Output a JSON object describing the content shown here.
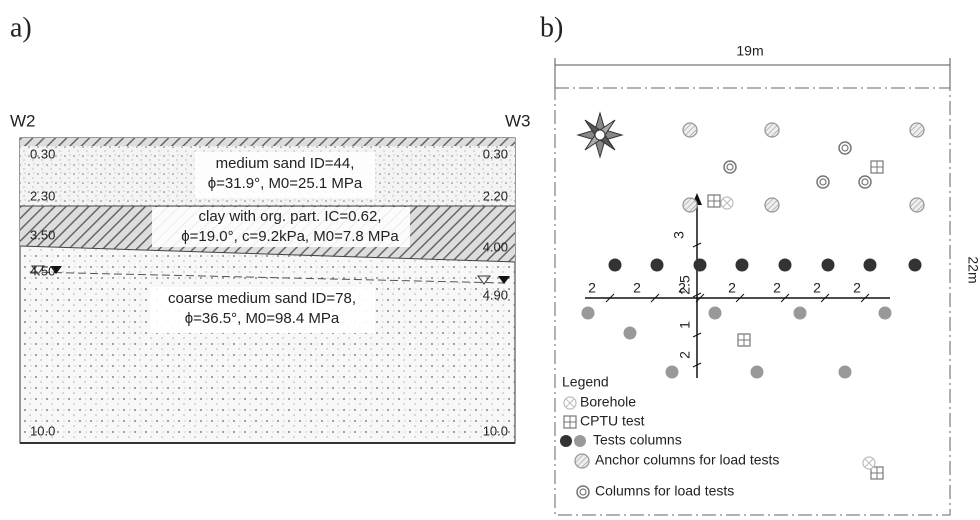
{
  "panel_a": {
    "label": "a)",
    "left_well": "W2",
    "right_well": "W3",
    "left_depths": [
      "0.30",
      "2.30",
      "3.50",
      "4.50",
      "10.0"
    ],
    "right_depths": [
      "0.30",
      "2.20",
      "4.00",
      "4.90",
      "10.0"
    ],
    "layers": [
      {
        "lines": [
          "medium sand ID=44,",
          "ϕ=31.9°, M0=25.1 MPa"
        ]
      },
      {
        "lines": [
          "clay with org. part. IC=0.62,",
          "ϕ=19.0°, c=9.2kPa, M0=7.8 MPa"
        ]
      },
      {
        "lines": [
          "coarse medium sand ID=78,",
          "ϕ=36.5°, M0=98.4 MPa"
        ]
      }
    ]
  },
  "panel_b": {
    "label": "b)",
    "width_label": "19m",
    "height_label": "22m",
    "spacing_x": [
      "2",
      "2",
      "2",
      "2",
      "2",
      "2",
      "2"
    ],
    "spacing_y": [
      "3",
      "2.5",
      "1",
      "2"
    ],
    "legend": {
      "title": "Legend",
      "items": [
        "Borehole",
        "CPTU test",
        "Tests columns",
        "Anchor columns for load tests",
        "Columns for load tests"
      ]
    }
  }
}
